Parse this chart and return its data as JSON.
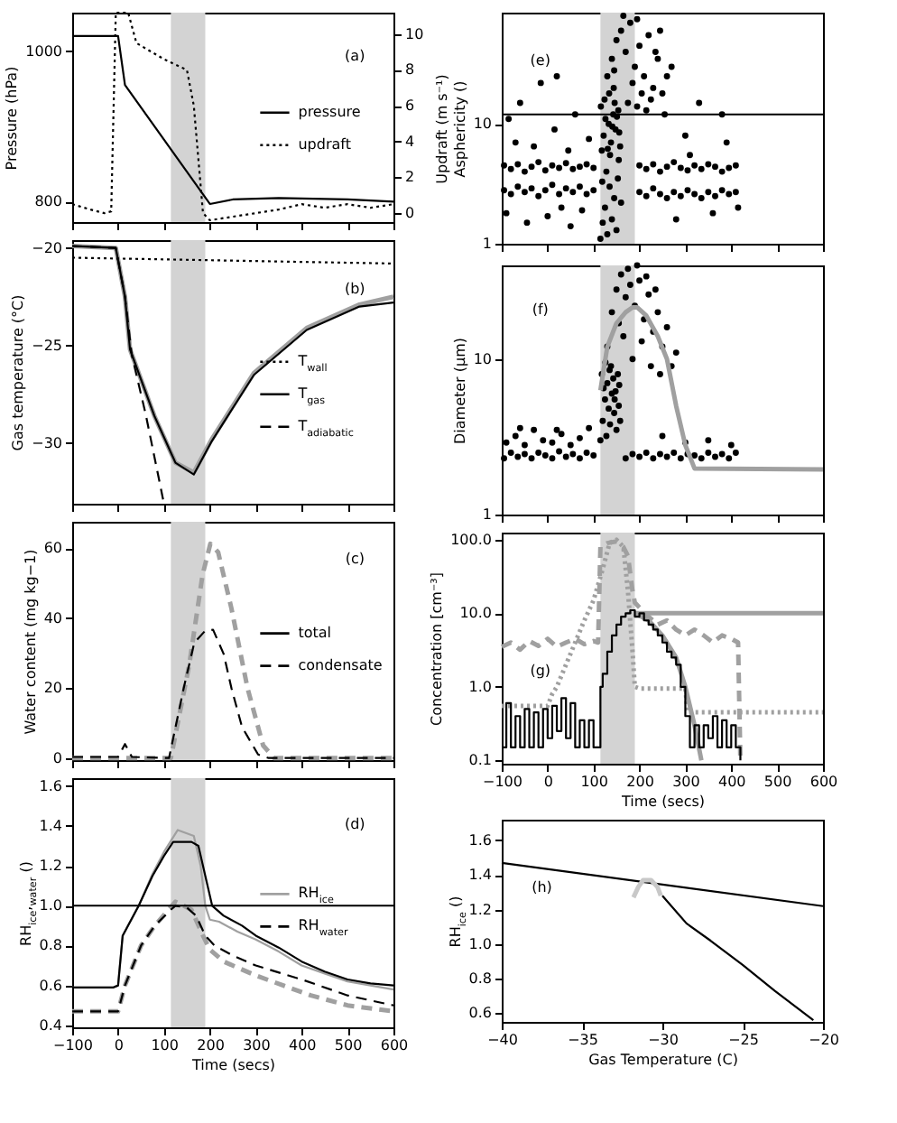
{
  "chart_data": [
    {
      "type": "line",
      "ylabel": "Pressure (hPa)",
      "xlim": [
        -100,
        600
      ],
      "xticks": [
        -100,
        0,
        100,
        200,
        300,
        400,
        500,
        600
      ],
      "ylim": [
        773,
        1051
      ],
      "yticks": [
        800,
        1000
      ],
      "y2lim": [
        -0.5,
        11.2
      ],
      "y2ticks": [
        0,
        2,
        4,
        6,
        8,
        10
      ],
      "tick_labels": "y",
      "legend": "right",
      "annotations": [
        "(a)"
      ],
      "bands": [
        {
          "axis": "x",
          "from": 115,
          "to": 190,
          "color": "#d3d3d3"
        }
      ],
      "series": [
        {
          "name": "pressure",
          "color": "#000000",
          "line_style": "solid",
          "x": [
            -100,
            0,
            15,
            200,
            250,
            350,
            500,
            600
          ],
          "values": [
            1020,
            1020,
            955,
            797,
            803,
            805,
            803,
            800
          ]
        },
        {
          "name": "updraft",
          "color": "#000000",
          "line_style": "dotted",
          "axis": "y2",
          "x": [
            -100,
            -60,
            -30,
            -15,
            -5,
            22,
            40,
            100,
            150,
            165,
            185,
            200,
            250,
            300,
            350,
            400,
            450,
            500,
            550,
            600
          ],
          "values": [
            0.5,
            0.2,
            0,
            0.1,
            11.2,
            11.2,
            9.5,
            8.6,
            8.0,
            6,
            0,
            -0.4,
            -0.2,
            0,
            0.2,
            0.5,
            0.3,
            0.5,
            0.3,
            0.5
          ]
        }
      ]
    },
    {
      "type": "line",
      "ylabel": "Gas temperature (°C)",
      "xlim": [
        -100,
        600
      ],
      "xticks": [
        -100,
        0,
        100,
        200,
        300,
        400,
        500,
        600
      ],
      "ylim": [
        -33.1,
        -19.6
      ],
      "yticks": [
        -30,
        -25,
        -20
      ],
      "tick_labels": "y",
      "legend": "right",
      "annotations": [
        "(b)"
      ],
      "bands": [
        {
          "axis": "x",
          "from": 115,
          "to": 190,
          "color": "#d3d3d3"
        }
      ],
      "series": [
        {
          "color": "#a0a0a0",
          "line_style": "solid",
          "x": [
            -100,
            -5,
            15,
            26,
            79,
            125,
            165,
            204,
            296,
            411,
            526,
            600
          ],
          "values": [
            -19.9,
            -20,
            -22.5,
            -25.2,
            -28.6,
            -31,
            -31.5,
            -29.8,
            -26.4,
            -24.1,
            -22.9,
            -22.5
          ]
        },
        {
          "name": "T$_{wall}$",
          "color": "#000000",
          "line_style": "dotted",
          "x": [
            -100,
            600
          ],
          "values": [
            -20.5,
            -20.8
          ]
        },
        {
          "name": "T$_{gas}$",
          "color": "#000000",
          "line_style": "solid",
          "x": [
            -100,
            -5,
            15,
            26,
            79,
            125,
            165,
            204,
            296,
            411,
            526,
            600
          ],
          "values": [
            -19.9,
            -20,
            -22.5,
            -25.2,
            -28.6,
            -31,
            -31.6,
            -29.9,
            -26.5,
            -24.2,
            -23,
            -22.8
          ]
        },
        {
          "name": "T$_{adiabatic}$",
          "color": "#000000",
          "line_style": "dashed",
          "x": [
            -100,
            -5,
            15,
            30,
            60,
            100
          ],
          "values": [
            -19.9,
            -20,
            -22.5,
            -25.5,
            -28.5,
            -33.1
          ]
        }
      ]
    },
    {
      "type": "line",
      "ylabel": "Water content (mg kg−1)",
      "xlim": [
        -100,
        600
      ],
      "xticks": [
        -100,
        0,
        100,
        200,
        300,
        400,
        500,
        600
      ],
      "ylim": [
        -0.6,
        67.6
      ],
      "yticks": [
        0,
        20,
        40,
        60
      ],
      "tick_labels": "y",
      "legend": "right",
      "annotations": [
        "(c)"
      ],
      "bands": [
        {
          "axis": "x",
          "from": 115,
          "to": 190,
          "color": "#d3d3d3"
        }
      ],
      "series": [
        {
          "name": "total",
          "color": "#000000",
          "line_style": "solid"
        },
        {
          "color": "#a0a0a0",
          "line_style": "dashed",
          "x": [
            -100,
            115,
            155,
            184,
            201,
            218,
            247,
            282,
            316,
            340,
            600
          ],
          "values": [
            0,
            0,
            26.6,
            52.4,
            61.3,
            58.9,
            42.8,
            20,
            3.6,
            0,
            0
          ]
        },
        {
          "name": "condensate",
          "color": "#000000",
          "line_style": "dashed",
          "x": [
            -100,
            0,
            15,
            30,
            111,
            143,
            166,
            189,
            207,
            230,
            247,
            270,
            305,
            328,
            600
          ],
          "values": [
            0.3,
            0.3,
            4,
            0.3,
            0,
            20,
            33,
            36.3,
            36.7,
            29.8,
            20,
            8.9,
            1,
            0,
            0
          ]
        }
      ]
    },
    {
      "type": "line",
      "ylabel": "RH$_{ice}$,$_{water}$ ()",
      "xlabel": "Time (secs)",
      "xlim": [
        -100,
        600
      ],
      "xticks": [
        -100,
        0,
        100,
        200,
        300,
        400,
        500,
        600
      ],
      "ylim": [
        0.39,
        1.64
      ],
      "yticks": [
        0.4,
        0.6,
        0.8,
        {
          "value": 1.0,
          "label": "1.0"
        },
        1.2,
        1.4,
        1.6
      ],
      "legend": "right",
      "annotations": [
        "(d)"
      ],
      "bands": [
        {
          "axis": "x",
          "from": 115,
          "to": 190,
          "color": "#d3d3d3"
        }
      ],
      "ref_lines": [
        {
          "axis": "y",
          "value": 1.0,
          "color": "#000000"
        }
      ],
      "series": [
        {
          "name": "RH$_{ice}$",
          "color": "#a0a0a0",
          "line_style": "solid",
          "x": [
            -100,
            -10,
            0,
            10,
            45,
            75,
            100,
            130,
            165,
            180,
            190,
            200,
            220,
            260,
            300,
            350,
            400,
            450,
            500,
            550,
            600
          ],
          "values": [
            0.59,
            0.59,
            0.6,
            0.85,
            1.0,
            1.16,
            1.27,
            1.38,
            1.35,
            1.2,
            1.0,
            0.93,
            0.92,
            0.87,
            0.83,
            0.77,
            0.7,
            0.66,
            0.62,
            0.6,
            0.58
          ]
        },
        {
          "color": "#000000",
          "line_style": "solid",
          "x": [
            -100,
            -10,
            0,
            10,
            45,
            75,
            100,
            120,
            160,
            175,
            190,
            205,
            230,
            270,
            300,
            350,
            400,
            450,
            500,
            550,
            600
          ],
          "values": [
            0.59,
            0.59,
            0.6,
            0.85,
            1.0,
            1.15,
            1.25,
            1.32,
            1.32,
            1.3,
            1.15,
            1.0,
            0.95,
            0.9,
            0.85,
            0.79,
            0.72,
            0.67,
            0.63,
            0.61,
            0.6
          ]
        },
        {
          "color": "#a0a0a0",
          "line_style": "dashed",
          "x": [
            -100,
            0,
            15,
            50,
            80,
            125,
            160,
            185,
            200,
            230,
            300,
            360,
            420,
            500,
            600
          ],
          "values": [
            0.47,
            0.47,
            0.6,
            0.8,
            0.9,
            1.02,
            0.98,
            0.85,
            0.78,
            0.72,
            0.65,
            0.6,
            0.55,
            0.5,
            0.47
          ]
        },
        {
          "name": "RH$_{water}$",
          "color": "#000000",
          "line_style": "dashed",
          "x": [
            -100,
            0,
            15,
            50,
            80,
            115,
            125,
            150,
            170,
            190,
            210,
            250,
            300,
            400,
            500,
            600
          ],
          "values": [
            0.47,
            0.47,
            0.6,
            0.8,
            0.9,
            0.98,
            1.0,
            0.99,
            0.95,
            0.85,
            0.8,
            0.75,
            0.7,
            0.63,
            0.55,
            0.5
          ]
        }
      ]
    },
    {
      "type": "scatter",
      "ylabel": "Updraft (m s⁻¹)\nAsphericity ()",
      "xlim": [
        -100,
        600
      ],
      "xticks": [
        -100,
        0,
        100,
        200,
        300,
        400,
        500,
        600
      ],
      "ylim": [
        1,
        85
      ],
      "yticks": [
        1,
        10
      ],
      "log": true,
      "tick_labels": "y",
      "annotations": [
        "(e)"
      ],
      "bands": [
        {
          "axis": "x",
          "from": 115,
          "to": 190,
          "color": "#d3d3d3"
        }
      ],
      "ref_lines": [
        {
          "axis": "y",
          "value": 12,
          "color": "#000000"
        }
      ],
      "series": [
        {
          "color": "#000000",
          "x": [
            -95,
            -80,
            -65,
            -50,
            -35,
            -20,
            -5,
            10,
            25,
            40,
            55,
            70,
            85,
            100,
            200,
            215,
            230,
            245,
            260,
            275,
            290,
            305,
            320,
            335,
            350,
            365,
            380,
            395,
            410,
            -95,
            -80,
            -65,
            -50,
            -35,
            -20,
            -5,
            10,
            25,
            40,
            55,
            70,
            85,
            100,
            200,
            215,
            230,
            245,
            260,
            275,
            290,
            305,
            320,
            335,
            350,
            365,
            380,
            395,
            410,
            -90,
            -70,
            -60,
            -45,
            -30,
            -15,
            0,
            15,
            30,
            45,
            60,
            75,
            90,
            -85,
            20,
            50,
            280,
            300,
            330,
            360,
            390,
            415,
            270,
            310,
            380,
            115,
            120,
            125,
            130,
            135,
            140,
            145,
            150,
            155,
            118,
            122,
            128,
            133,
            138,
            143,
            148,
            153,
            158,
            116,
            126,
            136,
            146,
            156,
            160,
            119,
            131,
            141,
            151,
            124,
            134,
            144,
            154,
            130,
            140,
            150,
            160,
            170,
            180,
            190,
            200,
            210,
            220,
            230,
            240,
            250,
            260,
            175,
            185,
            195,
            205,
            215,
            225,
            165,
            195,
            145,
            235,
            255,
            245
          ],
          "values": [
            2.8,
            2.6,
            3.0,
            2.7,
            2.9,
            2.5,
            2.8,
            3.1,
            2.6,
            2.9,
            2.7,
            3.0,
            2.6,
            2.8,
            2.7,
            2.5,
            2.9,
            2.6,
            2.4,
            2.7,
            2.5,
            2.8,
            2.6,
            2.4,
            2.7,
            2.5,
            2.8,
            2.6,
            2.7,
            4.5,
            4.2,
            4.6,
            4.0,
            4.4,
            4.8,
            4.1,
            4.5,
            4.3,
            4.7,
            4.2,
            4.4,
            4.6,
            4.3,
            4.5,
            4.2,
            4.6,
            4.0,
            4.4,
            4.8,
            4.3,
            4.1,
            4.5,
            4.2,
            4.6,
            4.4,
            4.0,
            4.3,
            4.5,
            1.8,
            7,
            15,
            1.5,
            6.5,
            22,
            1.7,
            9,
            2,
            6,
            12,
            1.9,
            7.5,
            11,
            25,
            1.4,
            1.6,
            8,
            15,
            1.8,
            7,
            2,
            30,
            5.5,
            12,
            1.1,
            1.5,
            2,
            1.2,
            3,
            1.6,
            2.4,
            1.3,
            5,
            6,
            8,
            4,
            10,
            7,
            12,
            9,
            3.5,
            6.5,
            14,
            11,
            5.5,
            15,
            8.5,
            2.2,
            3.3,
            6.2,
            9.5,
            11.5,
            16,
            18,
            20,
            13,
            25,
            35,
            50,
            60,
            40,
            70,
            30,
            45,
            25,
            55,
            20,
            35,
            18,
            25,
            15,
            22,
            14,
            18,
            13,
            16,
            80,
            75,
            28,
            40,
            12,
            60
          ]
        }
      ]
    },
    {
      "type": "scatter",
      "ylabel": "Diameter (μm)",
      "xlim": [
        -100,
        600
      ],
      "xticks": [
        -100,
        0,
        100,
        200,
        300,
        400,
        500,
        600
      ],
      "ylim": [
        1,
        40
      ],
      "yticks": [
        1,
        10
      ],
      "log": true,
      "tick_labels": "y",
      "annotations": [
        "(f)"
      ],
      "bands": [
        {
          "axis": "x",
          "from": 115,
          "to": 190,
          "color": "#d3d3d3"
        }
      ],
      "series": [
        {
          "color": "#000000",
          "x": [
            -95,
            -80,
            -65,
            -50,
            -35,
            -20,
            -5,
            10,
            25,
            40,
            55,
            70,
            85,
            100,
            170,
            185,
            200,
            215,
            230,
            245,
            260,
            275,
            290,
            305,
            320,
            335,
            350,
            365,
            380,
            395,
            410,
            -90,
            -70,
            -50,
            -30,
            -10,
            10,
            30,
            50,
            70,
            90,
            -60,
            20,
            250,
            300,
            350,
            400,
            115,
            120,
            125,
            130,
            135,
            140,
            145,
            150,
            155,
            118,
            122,
            128,
            133,
            138,
            143,
            148,
            153,
            158,
            126,
            136,
            146,
            156,
            130,
            140,
            150,
            160,
            170,
            180,
            190,
            200,
            210,
            220,
            230,
            240,
            250,
            260,
            270,
            280,
            165,
            185,
            205,
            225,
            245,
            175,
            195,
            215,
            155,
            235
          ],
          "values": [
            2.3,
            2.5,
            2.35,
            2.45,
            2.3,
            2.5,
            2.4,
            2.3,
            2.55,
            2.35,
            2.45,
            2.3,
            2.5,
            2.4,
            2.3,
            2.45,
            2.35,
            2.5,
            2.3,
            2.45,
            2.35,
            2.5,
            2.3,
            2.45,
            2.4,
            2.3,
            2.5,
            2.35,
            2.45,
            2.3,
            2.5,
            2.9,
            3.2,
            2.8,
            3.5,
            3.0,
            2.9,
            3.3,
            2.8,
            3.1,
            3.6,
            3.6,
            3.5,
            3.2,
            2.9,
            3.0,
            2.8,
            3,
            4,
            5.5,
            7,
            8.5,
            6,
            4.5,
            3.5,
            5,
            8,
            6.5,
            3.2,
            4.8,
            9,
            7.5,
            6.2,
            8,
            4,
            9.5,
            3.8,
            5.5,
            6.8,
            12,
            20,
            28,
            35,
            25,
            30,
            22,
            32,
            18,
            26,
            15,
            20,
            12,
            16,
            9,
            11,
            14,
            10,
            13,
            9,
            8,
            38,
            40,
            34,
            17,
            28
          ]
        },
        {
          "type": "line",
          "color": "#a0a0a0",
          "line_style": "solid",
          "x": [
            115,
            130,
            150,
            170,
            185,
            195,
            215,
            240,
            260,
            280,
            300,
            320,
            600
          ],
          "values": [
            6.3,
            12,
            17,
            20,
            21.5,
            21.5,
            19,
            14,
            10,
            5,
            2.8,
            1.98,
            1.95
          ]
        }
      ]
    },
    {
      "type": "line",
      "ylabel": "Concentration [cm⁻³]",
      "xlabel": "Time (secs)",
      "xlim": [
        -100,
        600
      ],
      "xticks": [
        -100,
        0,
        100,
        200,
        300,
        400,
        500,
        600
      ],
      "ylim": [
        0.09,
        125
      ],
      "yticks": [
        0.1,
        {
          "value": 1,
          "label": "1.0"
        },
        {
          "value": 10,
          "label": "10.0"
        },
        {
          "value": 100,
          "label": "100.0"
        }
      ],
      "log": true,
      "annotations": [
        "(g)"
      ],
      "bands": [
        {
          "axis": "x",
          "from": 115,
          "to": 190,
          "color": "#d3d3d3"
        }
      ],
      "series": [
        {
          "color": "#a0a0a0",
          "line_style": "dotted",
          "x": [
            -100,
            0,
            10,
            20,
            40,
            60,
            80,
            100,
            120,
            135,
            150,
            165,
            175,
            185,
            190,
            200,
            300,
            305,
            600
          ],
          "values": [
            0.55,
            0.55,
            0.8,
            1,
            2,
            4,
            8,
            15,
            40,
            90,
            100,
            80,
            20,
            3,
            1.0,
            0.95,
            0.95,
            0.45,
            0.45
          ]
        },
        {
          "color": "#a0a0a0",
          "line_style": "dashed",
          "x": [
            -100,
            -80,
            -60,
            -40,
            -20,
            0,
            20,
            40,
            60,
            80,
            100,
            110,
            115,
            130,
            150,
            165,
            175,
            185,
            190,
            200,
            220,
            240,
            260,
            280,
            300,
            320,
            340,
            360,
            380,
            400,
            415,
            420
          ],
          "values": [
            3.5,
            4.0,
            3.2,
            4.2,
            3.6,
            4.5,
            3.5,
            4.0,
            4.5,
            3.8,
            4.2,
            4.0,
            80,
            90,
            95,
            80,
            60,
            20,
            14,
            12,
            9,
            7,
            8,
            6,
            5,
            6,
            5,
            4,
            5,
            4.5,
            4,
            0.1
          ]
        },
        {
          "color": "#a0a0a0",
          "line_style": "solid",
          "x": [
            190,
            600
          ],
          "values": [
            10,
            10
          ]
        },
        {
          "color": "#a0a0a0",
          "line_style": "solid",
          "x": [
            190,
            220,
            250,
            280,
            300,
            320,
            335
          ],
          "values": [
            10,
            8,
            5,
            2.5,
            1,
            0.3,
            0.1
          ]
        },
        {
          "type": "step",
          "color": "#000000",
          "line_style": "solid",
          "x": [
            -100,
            -90,
            -80,
            -70,
            -60,
            -50,
            -40,
            -30,
            -20,
            -10,
            0,
            10,
            20,
            30,
            40,
            50,
            60,
            70,
            80,
            90,
            100,
            110,
            115,
            120,
            130,
            140,
            150,
            160,
            170,
            180,
            190,
            200,
            210,
            220,
            230,
            240,
            250,
            260,
            270,
            280,
            290,
            300,
            310,
            320,
            330,
            340,
            350,
            360,
            370,
            380,
            390,
            400,
            410,
            420
          ],
          "values": [
            0.15,
            0.6,
            0.15,
            0.4,
            0.15,
            0.5,
            0.15,
            0.45,
            0.15,
            0.5,
            0.2,
            0.55,
            0.25,
            0.7,
            0.2,
            0.6,
            0.15,
            0.35,
            0.15,
            0.35,
            0.15,
            0.15,
            1.0,
            1.5,
            3,
            5,
            7,
            9,
            10,
            11,
            9,
            10,
            8,
            7,
            6,
            5,
            4,
            3,
            2.5,
            2,
            1,
            0.4,
            0.15,
            0.3,
            0.15,
            0.3,
            0.2,
            0.4,
            0.15,
            0.35,
            0.15,
            0.3,
            0.15,
            0.1
          ]
        }
      ]
    },
    {
      "type": "line",
      "ylabel": "RH$_{ice}$ ()",
      "xlabel": "Gas Temperature (C)",
      "xlim": [
        -40,
        -20
      ],
      "xticks": [
        -40,
        -35,
        -30,
        -25,
        -20
      ],
      "ylim": [
        0.55,
        1.72
      ],
      "yticks": [
        0.6,
        0.8,
        {
          "value": 1.0,
          "label": "1.0"
        },
        1.2,
        1.4,
        1.6
      ],
      "annotations": [
        "(h)"
      ],
      "series": [
        {
          "color": "#000000",
          "line_style": "solid",
          "x": [
            -40,
            -20
          ],
          "values": [
            1.47,
            1.22
          ]
        },
        {
          "color": "#000000",
          "line_style": "solid",
          "x": [
            -30,
            -28.5,
            -27,
            -25,
            -23,
            -20.6
          ],
          "values": [
            1.28,
            1.12,
            1.02,
            0.88,
            0.73,
            0.56
          ]
        },
        {
          "color": "#c8c8c8",
          "line_style": "solid",
          "x": [
            -31.8,
            -31.5,
            -31.2,
            -30.7,
            -30.3,
            -30.1
          ],
          "values": [
            1.27,
            1.33,
            1.37,
            1.37,
            1.33,
            1.28
          ]
        }
      ]
    }
  ]
}
